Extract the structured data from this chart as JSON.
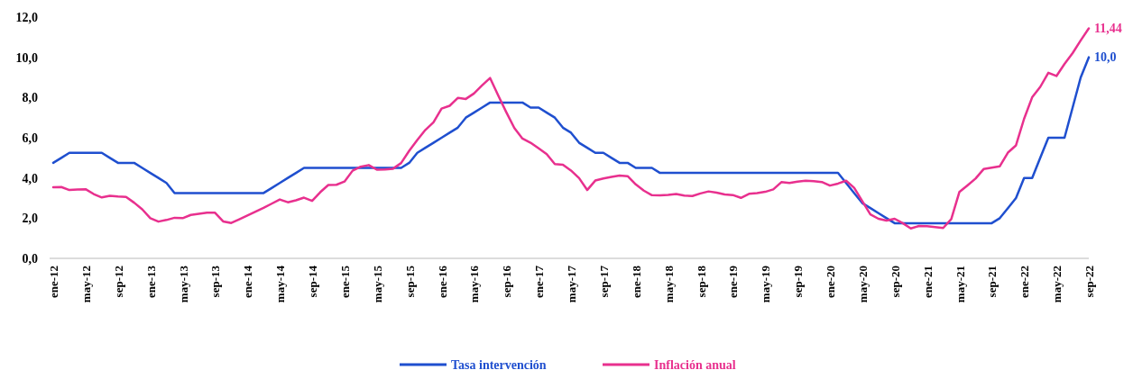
{
  "chart_data": {
    "type": "line",
    "categories": [
      "ene-12",
      null,
      null,
      null,
      "may-12",
      null,
      null,
      null,
      "sep-12",
      null,
      null,
      null,
      "ene-13",
      null,
      null,
      null,
      "may-13",
      null,
      null,
      null,
      "sep-13",
      null,
      null,
      null,
      "ene-14",
      null,
      null,
      null,
      "may-14",
      null,
      null,
      null,
      "sep-14",
      null,
      null,
      null,
      "ene-15",
      null,
      null,
      null,
      "may-15",
      null,
      null,
      null,
      "sep-15",
      null,
      null,
      null,
      "ene-16",
      null,
      null,
      null,
      "may-16",
      null,
      null,
      null,
      "sep-16",
      null,
      null,
      null,
      "ene-17",
      null,
      null,
      null,
      "may-17",
      null,
      null,
      null,
      "sep-17",
      null,
      null,
      null,
      "ene-18",
      null,
      null,
      null,
      "may-18",
      null,
      null,
      null,
      "sep-18",
      null,
      null,
      null,
      "ene-19",
      null,
      null,
      null,
      "may-19",
      null,
      null,
      null,
      "sep-19",
      null,
      null,
      null,
      "ene-20",
      null,
      null,
      null,
      "may-20",
      null,
      null,
      null,
      "sep-20",
      null,
      null,
      null,
      "ene-21",
      null,
      null,
      null,
      "may-21",
      null,
      null,
      null,
      "sep-21",
      null,
      null,
      null,
      "ene-22",
      null,
      null,
      null,
      "may-22",
      null,
      null,
      null,
      "sep-22"
    ],
    "series": [
      {
        "name": "Tasa intervención",
        "color": "#1f4fcf",
        "values": [
          4.75,
          5.0,
          5.25,
          5.25,
          5.25,
          5.25,
          5.25,
          5.0,
          4.75,
          4.75,
          4.75,
          4.5,
          4.25,
          4.0,
          3.75,
          3.25,
          3.25,
          3.25,
          3.25,
          3.25,
          3.25,
          3.25,
          3.25,
          3.25,
          3.25,
          3.25,
          3.25,
          3.5,
          3.75,
          4.0,
          4.25,
          4.5,
          4.5,
          4.5,
          4.5,
          4.5,
          4.5,
          4.5,
          4.5,
          4.5,
          4.5,
          4.5,
          4.5,
          4.5,
          4.75,
          5.25,
          5.5,
          5.75,
          6.0,
          6.25,
          6.5,
          7.0,
          7.25,
          7.5,
          7.75,
          7.75,
          7.75,
          7.75,
          7.75,
          7.5,
          7.5,
          7.25,
          7.0,
          6.5,
          6.25,
          5.75,
          5.5,
          5.25,
          5.25,
          5.0,
          4.75,
          4.75,
          4.5,
          4.5,
          4.5,
          4.25,
          4.25,
          4.25,
          4.25,
          4.25,
          4.25,
          4.25,
          4.25,
          4.25,
          4.25,
          4.25,
          4.25,
          4.25,
          4.25,
          4.25,
          4.25,
          4.25,
          4.25,
          4.25,
          4.25,
          4.25,
          4.25,
          4.25,
          3.75,
          3.25,
          2.75,
          2.5,
          2.25,
          2.0,
          1.75,
          1.75,
          1.75,
          1.75,
          1.75,
          1.75,
          1.75,
          1.75,
          1.75,
          1.75,
          1.75,
          1.75,
          1.75,
          2.0,
          2.5,
          3.0,
          4.0,
          4.0,
          5.0,
          6.0,
          6.0,
          6.0,
          7.5,
          9.0,
          10.0
        ],
        "value_labels": [
          null,
          null,
          null,
          null,
          null,
          null,
          null,
          null,
          null,
          null,
          null,
          null,
          null,
          null,
          null,
          null,
          null,
          null,
          null,
          null,
          null,
          null,
          null,
          null,
          null,
          null,
          null,
          null,
          null,
          null,
          null,
          null,
          null,
          null,
          null,
          null,
          null,
          null,
          null,
          null,
          null,
          null,
          null,
          null,
          null,
          null,
          null,
          null,
          null,
          null,
          null,
          null,
          null,
          null,
          null,
          null,
          null,
          null,
          null,
          null,
          null,
          null,
          null,
          null,
          null,
          null,
          null,
          null,
          null,
          null,
          null,
          null,
          null,
          null,
          null,
          null,
          null,
          null,
          null,
          null,
          null,
          null,
          null,
          null,
          null,
          null,
          null,
          null,
          null,
          null,
          null,
          null,
          null,
          null,
          null,
          null,
          null,
          null,
          null,
          null,
          null,
          null,
          null,
          null,
          null,
          null,
          null,
          null,
          null,
          null,
          null,
          null,
          null,
          null,
          null,
          null,
          null,
          null,
          null,
          null,
          null,
          null,
          null,
          null,
          null,
          null,
          null,
          null,
          "10,0"
        ]
      },
      {
        "name": "Inflación anual",
        "color": "#e8308e",
        "values": [
          3.54,
          3.55,
          3.4,
          3.43,
          3.44,
          3.2,
          3.03,
          3.11,
          3.08,
          3.06,
          2.77,
          2.44,
          2.0,
          1.83,
          1.91,
          2.02,
          2.0,
          2.16,
          2.22,
          2.27,
          2.27,
          1.84,
          1.76,
          1.94,
          2.13,
          2.32,
          2.51,
          2.72,
          2.93,
          2.79,
          2.89,
          3.02,
          2.86,
          3.29,
          3.65,
          3.66,
          3.82,
          4.36,
          4.56,
          4.64,
          4.41,
          4.42,
          4.46,
          4.74,
          5.35,
          5.89,
          6.39,
          6.77,
          7.45,
          7.59,
          7.98,
          7.93,
          8.2,
          8.6,
          8.97,
          8.1,
          7.27,
          6.48,
          5.96,
          5.75,
          5.47,
          5.18,
          4.69,
          4.66,
          4.37,
          3.99,
          3.4,
          3.87,
          3.97,
          4.05,
          4.12,
          4.09,
          3.68,
          3.37,
          3.14,
          3.13,
          3.16,
          3.2,
          3.12,
          3.1,
          3.23,
          3.33,
          3.27,
          3.18,
          3.15,
          3.01,
          3.21,
          3.25,
          3.31,
          3.43,
          3.79,
          3.75,
          3.82,
          3.86,
          3.84,
          3.8,
          3.62,
          3.72,
          3.86,
          3.51,
          2.85,
          2.19,
          1.97,
          1.88,
          1.97,
          1.75,
          1.49,
          1.61,
          1.6,
          1.56,
          1.51,
          1.95,
          3.3,
          3.63,
          3.97,
          4.44,
          4.51,
          4.58,
          5.26,
          5.62,
          6.94,
          8.01,
          8.53,
          9.23,
          9.07,
          9.67,
          10.21,
          10.84,
          11.44
        ],
        "value_labels": [
          null,
          null,
          null,
          null,
          null,
          null,
          null,
          null,
          null,
          null,
          null,
          null,
          null,
          null,
          null,
          null,
          null,
          null,
          null,
          null,
          null,
          null,
          null,
          null,
          null,
          null,
          null,
          null,
          null,
          null,
          null,
          null,
          null,
          null,
          null,
          null,
          null,
          null,
          null,
          null,
          null,
          null,
          null,
          null,
          null,
          null,
          null,
          null,
          null,
          null,
          null,
          null,
          null,
          null,
          null,
          null,
          null,
          null,
          null,
          null,
          null,
          null,
          null,
          null,
          null,
          null,
          null,
          null,
          null,
          null,
          null,
          null,
          null,
          null,
          null,
          null,
          null,
          null,
          null,
          null,
          null,
          null,
          null,
          null,
          null,
          null,
          null,
          null,
          null,
          null,
          null,
          null,
          null,
          null,
          null,
          null,
          null,
          null,
          null,
          null,
          null,
          null,
          null,
          null,
          null,
          null,
          null,
          null,
          null,
          null,
          null,
          null,
          null,
          null,
          null,
          null,
          null,
          null,
          null,
          null,
          null,
          null,
          null,
          null,
          null,
          null,
          null,
          null,
          "11,44"
        ]
      }
    ],
    "ylim": [
      0,
      12
    ],
    "yticks": [
      {
        "value": 0,
        "label": "0,0"
      },
      {
        "value": 2,
        "label": "2,0"
      },
      {
        "value": 4,
        "label": "4,0"
      },
      {
        "value": 6,
        "label": "6,0"
      },
      {
        "value": 8,
        "label": "8,0"
      },
      {
        "value": 10,
        "label": "10,0"
      },
      {
        "value": 12,
        "label": "12,0"
      }
    ],
    "grid": false,
    "legend": "bottom"
  }
}
